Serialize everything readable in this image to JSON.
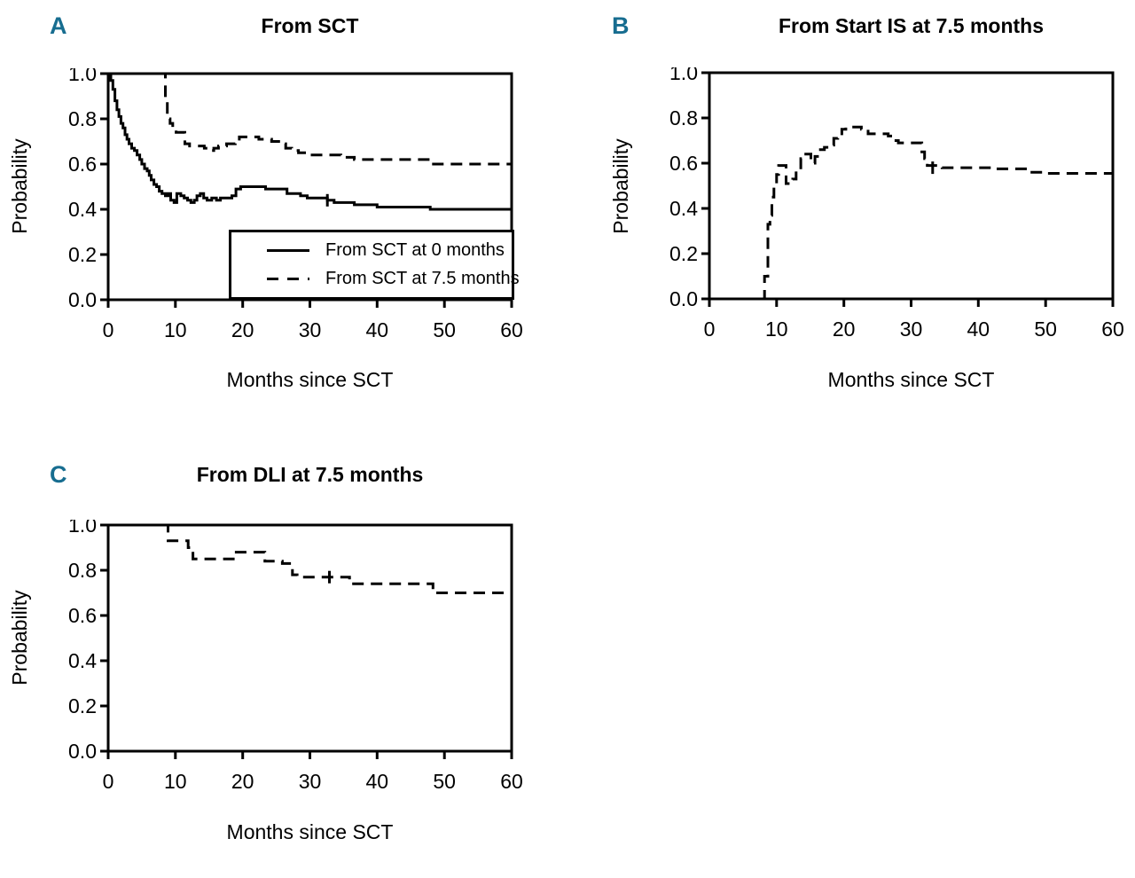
{
  "figure": {
    "background": "#ffffff",
    "line_color": "#000000",
    "panel_letter_color": "#176d90"
  },
  "chart_data": {
    "type": "line",
    "subtype": "step-survival-curves",
    "grid": false,
    "panels": [
      {
        "letter": "A",
        "title": "From SCT",
        "xlabel": "Months since SCT",
        "ylabel": "Probability",
        "xlim": [
          0,
          60
        ],
        "ylim": [
          0.0,
          1.0
        ],
        "xticks": [
          0,
          10,
          20,
          30,
          40,
          50,
          60
        ],
        "ytick_labels": [
          "1.0",
          "0.8",
          "0.6",
          "0.4",
          "0.2",
          "0.0"
        ],
        "legend": {
          "position": "bottom-right-inside",
          "entries": [
            {
              "label": "From SCT at 0 months",
              "linestyle": "solid"
            },
            {
              "label": "From SCT at 7.5 months",
              "linestyle": "dashed"
            }
          ]
        },
        "series": [
          {
            "name": "From SCT at 0 months",
            "linestyle": "solid",
            "points": [
              [
                0,
                1.0
              ],
              [
                0.4,
                0.97
              ],
              [
                0.7,
                0.93
              ],
              [
                1.0,
                0.88
              ],
              [
                1.3,
                0.84
              ],
              [
                1.6,
                0.81
              ],
              [
                1.9,
                0.78
              ],
              [
                2.2,
                0.76
              ],
              [
                2.5,
                0.73
              ],
              [
                2.8,
                0.71
              ],
              [
                3.1,
                0.69
              ],
              [
                3.5,
                0.67
              ],
              [
                3.9,
                0.66
              ],
              [
                4.3,
                0.64
              ],
              [
                4.7,
                0.62
              ],
              [
                5.0,
                0.6
              ],
              [
                5.4,
                0.58
              ],
              [
                5.8,
                0.57
              ],
              [
                6.1,
                0.55
              ],
              [
                6.4,
                0.53
              ],
              [
                6.8,
                0.51
              ],
              [
                7.2,
                0.5
              ],
              [
                7.6,
                0.48
              ],
              [
                8.0,
                0.47
              ],
              [
                8.5,
                0.46
              ],
              [
                8.9,
                0.47
              ],
              [
                9.3,
                0.44
              ],
              [
                9.8,
                0.43
              ],
              [
                10.2,
                0.47
              ],
              [
                10.8,
                0.46
              ],
              [
                11.3,
                0.45
              ],
              [
                11.8,
                0.44
              ],
              [
                12.3,
                0.43
              ],
              [
                12.8,
                0.44
              ],
              [
                13.2,
                0.46
              ],
              [
                13.7,
                0.47
              ],
              [
                14.2,
                0.45
              ],
              [
                14.7,
                0.44
              ],
              [
                15.4,
                0.45
              ],
              [
                16.1,
                0.44
              ],
              [
                16.7,
                0.45
              ],
              [
                18.4,
                0.46
              ],
              [
                19.0,
                0.49
              ],
              [
                19.7,
                0.5
              ],
              [
                23.4,
                0.49
              ],
              [
                26.6,
                0.47
              ],
              [
                28.6,
                0.46
              ],
              [
                29.6,
                0.45
              ],
              [
                32.6,
                0.44
              ],
              [
                33.6,
                0.43
              ],
              [
                36.6,
                0.42
              ],
              [
                40.0,
                0.41
              ],
              [
                47.9,
                0.4
              ],
              [
                60,
                0.4
              ]
            ],
            "censor_ticks": [
              [
                32.6,
                0.44
              ]
            ]
          },
          {
            "name": "From SCT at 7.5 months",
            "linestyle": "dashed",
            "points": [
              [
                7.5,
                1.0
              ],
              [
                8.5,
                0.88
              ],
              [
                8.8,
                0.8
              ],
              [
                9.2,
                0.78
              ],
              [
                9.6,
                0.75
              ],
              [
                10.1,
                0.74
              ],
              [
                11.4,
                0.69
              ],
              [
                12.1,
                0.68
              ],
              [
                14.3,
                0.67
              ],
              [
                14.9,
                0.66
              ],
              [
                15.7,
                0.67
              ],
              [
                16.4,
                0.68
              ],
              [
                17.6,
                0.69
              ],
              [
                18.9,
                0.7
              ],
              [
                19.5,
                0.72
              ],
              [
                22.4,
                0.71
              ],
              [
                24.3,
                0.7
              ],
              [
                25.6,
                0.69
              ],
              [
                26.4,
                0.67
              ],
              [
                27.3,
                0.66
              ],
              [
                28.3,
                0.65
              ],
              [
                29.6,
                0.64
              ],
              [
                34.6,
                0.63
              ],
              [
                36.6,
                0.62
              ],
              [
                47.8,
                0.6
              ],
              [
                60,
                0.6
              ]
            ],
            "censor_ticks": []
          }
        ]
      },
      {
        "letter": "B",
        "title": "From Start IS at 7.5 months",
        "xlabel": "Months since SCT",
        "ylabel": "Probability",
        "xlim": [
          0,
          60
        ],
        "ylim": [
          0.0,
          1.0
        ],
        "xticks": [
          0,
          10,
          20,
          30,
          40,
          50,
          60
        ],
        "ytick_labels": [
          "1.0",
          "0.8",
          "0.6",
          "0.4",
          "0.2",
          "0.0"
        ],
        "legend": null,
        "series": [
          {
            "name": "From Start IS at 7.5 months",
            "linestyle": "dashed",
            "points": [
              [
                7.8,
                0.0
              ],
              [
                8.2,
                0.1
              ],
              [
                8.7,
                0.33
              ],
              [
                9.0,
                0.37
              ],
              [
                9.3,
                0.45
              ],
              [
                9.6,
                0.5
              ],
              [
                10.0,
                0.55
              ],
              [
                10.3,
                0.59
              ],
              [
                11.4,
                0.51
              ],
              [
                12.4,
                0.53
              ],
              [
                12.9,
                0.57
              ],
              [
                13.6,
                0.62
              ],
              [
                14.1,
                0.64
              ],
              [
                15.1,
                0.6
              ],
              [
                15.7,
                0.63
              ],
              [
                16.3,
                0.66
              ],
              [
                17.1,
                0.67
              ],
              [
                17.9,
                0.68
              ],
              [
                18.5,
                0.71
              ],
              [
                19.1,
                0.73
              ],
              [
                19.7,
                0.75
              ],
              [
                20.3,
                0.76
              ],
              [
                22.6,
                0.75
              ],
              [
                23.6,
                0.73
              ],
              [
                26.6,
                0.72
              ],
              [
                27.4,
                0.7
              ],
              [
                28.1,
                0.69
              ],
              [
                31.6,
                0.65
              ],
              [
                32.0,
                0.62
              ],
              [
                32.4,
                0.59
              ],
              [
                34.6,
                0.58
              ],
              [
                42.0,
                0.575
              ],
              [
                47.6,
                0.56
              ],
              [
                50.0,
                0.555
              ],
              [
                60,
                0.555
              ]
            ],
            "censor_ticks": [
              [
                33.2,
                0.58
              ]
            ]
          }
        ]
      },
      {
        "letter": "C",
        "title": "From DLI at 7.5 months",
        "xlabel": "Months since SCT",
        "ylabel": "Probability",
        "xlim": [
          0,
          60
        ],
        "ylim": [
          0.0,
          1.0
        ],
        "xticks": [
          0,
          10,
          20,
          30,
          40,
          50,
          60
        ],
        "ytick_labels": [
          "1.0",
          "0.8",
          "0.6",
          "0.4",
          "0.2",
          "0.0"
        ],
        "legend": null,
        "series": [
          {
            "name": "From DLI at 7.5 months",
            "linestyle": "dashed",
            "points": [
              [
                8.3,
                1.0
              ],
              [
                8.9,
                0.93
              ],
              [
                11.9,
                0.9
              ],
              [
                12.6,
                0.85
              ],
              [
                18.6,
                0.88
              ],
              [
                23.3,
                0.84
              ],
              [
                25.9,
                0.83
              ],
              [
                27.4,
                0.78
              ],
              [
                28.1,
                0.77
              ],
              [
                35.9,
                0.74
              ],
              [
                48.3,
                0.7
              ],
              [
                60,
                0.7
              ]
            ],
            "censor_ticks": [
              [
                32.9,
                0.77
              ]
            ]
          }
        ]
      }
    ]
  }
}
